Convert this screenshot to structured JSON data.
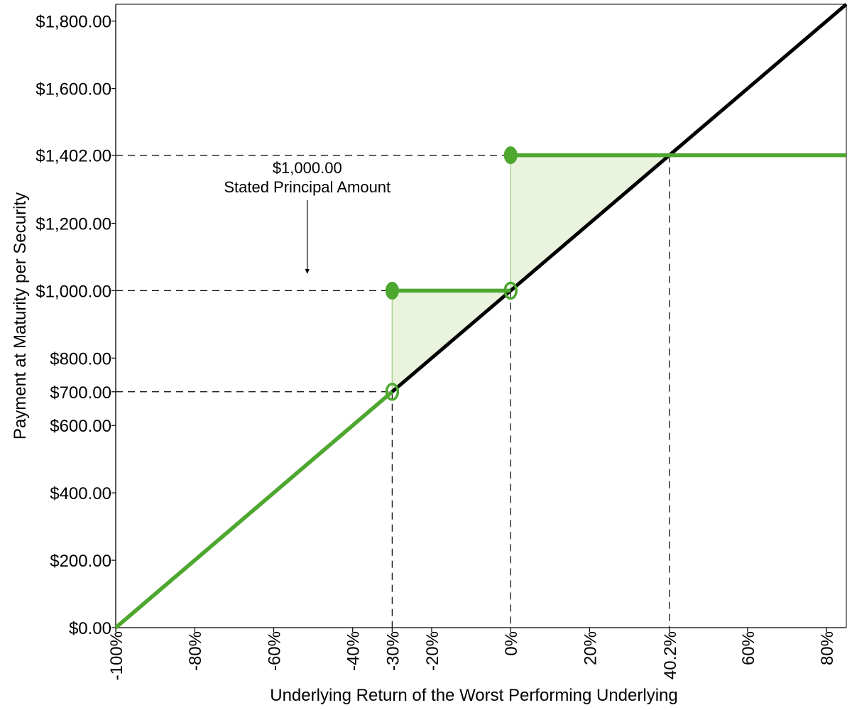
{
  "chart_data": {
    "type": "line",
    "title": "",
    "xlabel": "Underlying Return of the Worst Performing Underlying",
    "ylabel": "Payment at Maturity per Security",
    "xlim": [
      -100,
      85
    ],
    "ylim": [
      0,
      1850
    ],
    "x_ticks": [
      {
        "value": -100,
        "label": "-100%"
      },
      {
        "value": -80,
        "label": "-80%"
      },
      {
        "value": -60,
        "label": "-60%"
      },
      {
        "value": -40,
        "label": "-40%"
      },
      {
        "value": -30,
        "label": "-30%"
      },
      {
        "value": -20,
        "label": "-20%"
      },
      {
        "value": 0,
        "label": "0%"
      },
      {
        "value": 20,
        "label": "20%"
      },
      {
        "value": 40.2,
        "label": "40.2%"
      },
      {
        "value": 60,
        "label": "60%"
      },
      {
        "value": 80,
        "label": "80%"
      }
    ],
    "y_ticks": [
      {
        "value": 0,
        "label": "$0.00"
      },
      {
        "value": 200,
        "label": "$200.00"
      },
      {
        "value": 400,
        "label": "$400.00"
      },
      {
        "value": 600,
        "label": "$600.00"
      },
      {
        "value": 700,
        "label": "$700.00"
      },
      {
        "value": 800,
        "label": "$800.00"
      },
      {
        "value": 1000,
        "label": "$1,000.00"
      },
      {
        "value": 1200,
        "label": "$1,200.00"
      },
      {
        "value": 1402,
        "label": "$1,402.00"
      },
      {
        "value": 1600,
        "label": "$1,600.00"
      },
      {
        "value": 1800,
        "label": "$1,800.00"
      }
    ],
    "series": [
      {
        "role": "underlying",
        "color": "#000000",
        "x": [
          -100,
          85
        ],
        "y": [
          0,
          1850
        ]
      },
      {
        "role": "payment",
        "color": "#4ea72e",
        "segments": [
          {
            "x": [
              -100,
              -30
            ],
            "y": [
              0,
              700
            ]
          },
          {
            "x": [
              -30,
              0
            ],
            "y": [
              1000,
              1000
            ]
          },
          {
            "x": [
              0,
              85
            ],
            "y": [
              1402,
              1402
            ]
          }
        ],
        "filled_points": [
          {
            "x": -30,
            "y": 1000
          },
          {
            "x": 0,
            "y": 1402
          }
        ],
        "open_points": [
          {
            "x": -30,
            "y": 700
          },
          {
            "x": 0,
            "y": 1000
          }
        ]
      }
    ],
    "shaded_regions": [
      {
        "color": "#e9f3de",
        "polygon": [
          [
            -30,
            700
          ],
          [
            -30,
            1000
          ],
          [
            0,
            1000
          ]
        ]
      },
      {
        "color": "#e9f3de",
        "polygon": [
          [
            0,
            1000
          ],
          [
            0,
            1402
          ],
          [
            40.2,
            1402
          ]
        ]
      }
    ],
    "reference_lines": {
      "horizontal": [
        {
          "y": 700,
          "x_to": -30
        },
        {
          "y": 1000,
          "x_to": -30
        },
        {
          "y": 1402,
          "x_to": 0
        }
      ],
      "vertical": [
        {
          "x": -30,
          "y_to": 700
        },
        {
          "x": 0,
          "y_to": 1000
        },
        {
          "x": 40.2,
          "y_to": 1402
        }
      ]
    },
    "annotations": [
      {
        "id": "principal",
        "lines": [
          "$1,000.00",
          "Stated Principal Amount"
        ],
        "arrow": true
      }
    ],
    "grid": false,
    "legend": "none"
  }
}
